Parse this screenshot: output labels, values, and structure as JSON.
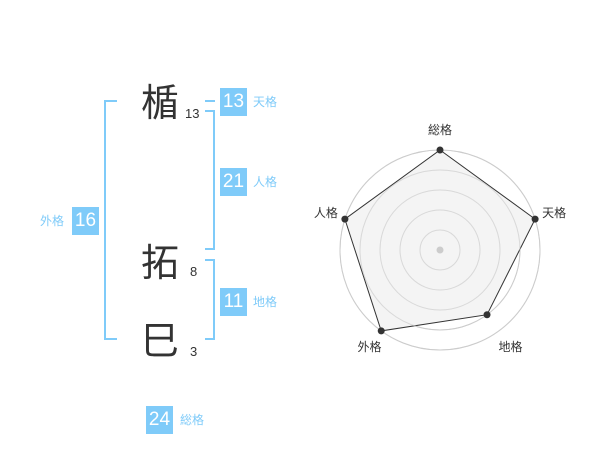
{
  "name": {
    "chars": [
      {
        "char": "楯",
        "strokes": "13"
      },
      {
        "char": "拓",
        "strokes": "8"
      },
      {
        "char": "巳",
        "strokes": "3"
      }
    ]
  },
  "kaku": {
    "tenkaku": {
      "label": "天格",
      "value": "13"
    },
    "jinkaku": {
      "label": "人格",
      "value": "21"
    },
    "chikaku": {
      "label": "地格",
      "value": "11"
    },
    "gaikaku": {
      "label": "外格",
      "value": "16"
    },
    "soukaku": {
      "label": "総格",
      "value": "24"
    }
  },
  "colors": {
    "accent": "#7fcbf9",
    "text": "#333333",
    "radar_fill": "#f2f2f2",
    "grid": "#cccccc"
  },
  "chart_data": {
    "type": "radar",
    "categories": [
      "総格",
      "天格",
      "地格",
      "外格",
      "人格"
    ],
    "values": [
      5,
      5,
      4,
      5,
      5
    ],
    "rlim": [
      0,
      5
    ],
    "grid": true
  }
}
